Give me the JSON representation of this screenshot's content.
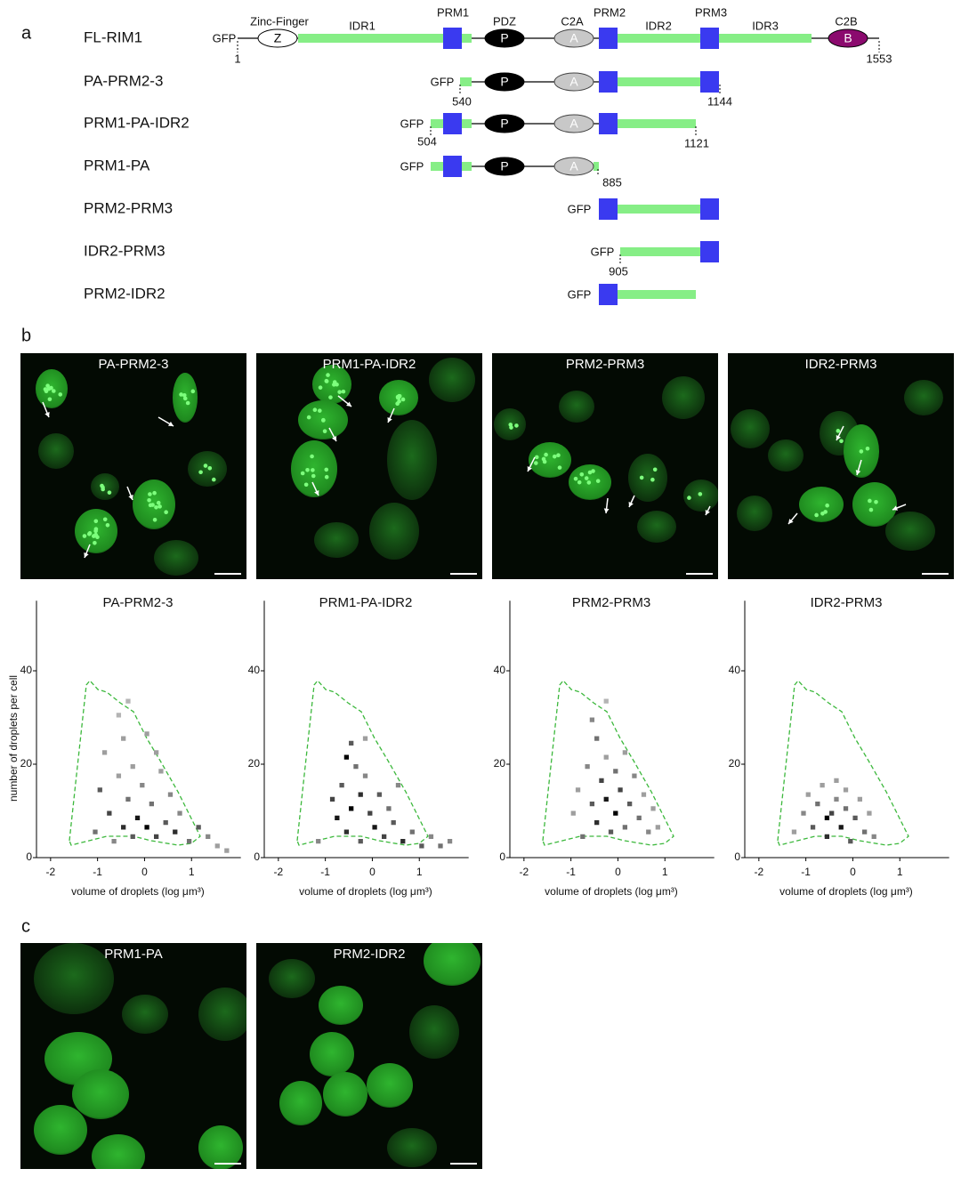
{
  "panels": {
    "a": "a",
    "b": "b",
    "c": "c"
  },
  "domains": {
    "gfp": "GFP",
    "zinc_finger": "Zinc-Finger",
    "z": "Z",
    "idr1": "IDR1",
    "prm1": "PRM1",
    "pdz": "PDZ",
    "p": "P",
    "c2a": "C2A",
    "a": "A",
    "prm2": "PRM2",
    "idr2": "IDR2",
    "prm3": "PRM3",
    "idr3": "IDR3",
    "c2b": "C2B",
    "b": "B"
  },
  "constructs": [
    {
      "name": "FL-RIM1",
      "start": 1,
      "end": 1553
    },
    {
      "name": "PA-PRM2-3",
      "start": 540,
      "end": 1144
    },
    {
      "name": "PRM1-PA-IDR2",
      "start": 504,
      "end": 1121
    },
    {
      "name": "PRM1-PA",
      "end": 885
    },
    {
      "name": "PRM2-PRM3"
    },
    {
      "name": "IDR2-PRM3",
      "start": 905
    },
    {
      "name": "PRM2-IDR2"
    }
  ],
  "images_b": [
    "PA-PRM2-3",
    "PRM1-PA-IDR2",
    "PRM2-PRM3",
    "IDR2-PRM3"
  ],
  "plot_axes": {
    "xlim": [
      -2.3,
      2.05
    ],
    "ylim": [
      0,
      55
    ],
    "xticks": [
      -2,
      -1,
      0,
      1
    ],
    "yticks": [
      0,
      20,
      40
    ],
    "y_label": "number of droplets per cell",
    "x_label": "volume of droplets (log μm³)"
  },
  "plots": [
    {
      "title": "PA-PRM2-3",
      "cells": [
        [
          -1.1,
          5,
          0.5
        ],
        [
          -1,
          14,
          0.6
        ],
        [
          -0.9,
          22,
          0.3
        ],
        [
          -0.8,
          9,
          0.7
        ],
        [
          -0.7,
          3,
          0.4
        ],
        [
          -0.6,
          17,
          0.3
        ],
        [
          -0.5,
          25,
          0.3
        ],
        [
          -0.5,
          6,
          0.8
        ],
        [
          -0.4,
          12,
          0.5
        ],
        [
          -0.3,
          19,
          0.3
        ],
        [
          -0.3,
          4,
          0.6
        ],
        [
          -0.2,
          8,
          0.9
        ],
        [
          -0.1,
          15,
          0.4
        ],
        [
          0,
          6,
          1
        ],
        [
          0,
          26,
          0.3
        ],
        [
          0.1,
          11,
          0.5
        ],
        [
          0.2,
          4,
          0.7
        ],
        [
          0.3,
          18,
          0.3
        ],
        [
          0.4,
          7,
          0.6
        ],
        [
          0.5,
          13,
          0.4
        ],
        [
          0.6,
          5,
          0.8
        ],
        [
          0.7,
          9,
          0.4
        ],
        [
          0.9,
          3,
          0.5
        ],
        [
          1.1,
          6,
          0.6
        ],
        [
          1.3,
          4,
          0.4
        ],
        [
          1.5,
          2,
          0.3
        ],
        [
          1.7,
          1,
          0.3
        ],
        [
          -0.6,
          30,
          0.2
        ],
        [
          -0.4,
          33,
          0.2
        ],
        [
          0.2,
          22,
          0.3
        ]
      ]
    },
    {
      "title": "PRM1-PA-IDR2",
      "cells": [
        [
          -1.2,
          3,
          0.4
        ],
        [
          -0.9,
          12,
          0.7
        ],
        [
          -0.8,
          8,
          0.9
        ],
        [
          -0.7,
          15,
          0.6
        ],
        [
          -0.6,
          5,
          0.8
        ],
        [
          -0.5,
          24,
          0.6
        ],
        [
          -0.5,
          10,
          1
        ],
        [
          -0.4,
          19,
          0.5
        ],
        [
          -0.3,
          13,
          0.8
        ],
        [
          -0.3,
          3,
          0.6
        ],
        [
          -0.2,
          17,
          0.4
        ],
        [
          -0.1,
          9,
          0.7
        ],
        [
          0,
          6,
          0.9
        ],
        [
          0.1,
          13,
          0.6
        ],
        [
          0.2,
          4,
          0.7
        ],
        [
          0.3,
          10,
          0.5
        ],
        [
          0.4,
          7,
          0.6
        ],
        [
          0.5,
          15,
          0.4
        ],
        [
          0.6,
          3,
          0.8
        ],
        [
          0.8,
          5,
          0.5
        ],
        [
          1,
          2,
          0.6
        ],
        [
          1.2,
          4,
          0.4
        ],
        [
          1.4,
          2,
          0.5
        ],
        [
          1.6,
          3,
          0.4
        ],
        [
          -0.6,
          21,
          1
        ],
        [
          -0.2,
          25,
          0.3
        ]
      ]
    },
    {
      "title": "PRM2-PRM3",
      "cells": [
        [
          -1,
          9,
          0.3
        ],
        [
          -0.9,
          14,
          0.3
        ],
        [
          -0.8,
          4,
          0.5
        ],
        [
          -0.7,
          19,
          0.4
        ],
        [
          -0.6,
          11,
          0.6
        ],
        [
          -0.5,
          25,
          0.5
        ],
        [
          -0.5,
          7,
          0.8
        ],
        [
          -0.4,
          16,
          0.7
        ],
        [
          -0.3,
          21,
          0.3
        ],
        [
          -0.3,
          12,
          0.9
        ],
        [
          -0.2,
          5,
          0.6
        ],
        [
          -0.1,
          18,
          0.5
        ],
        [
          -0.1,
          9,
          1
        ],
        [
          0,
          14,
          0.7
        ],
        [
          0.1,
          22,
          0.3
        ],
        [
          0.1,
          6,
          0.5
        ],
        [
          0.2,
          11,
          0.6
        ],
        [
          0.3,
          17,
          0.4
        ],
        [
          0.4,
          8,
          0.5
        ],
        [
          0.5,
          13,
          0.3
        ],
        [
          0.6,
          5,
          0.4
        ],
        [
          0.7,
          10,
          0.3
        ],
        [
          0.8,
          6,
          0.3
        ],
        [
          -0.3,
          33,
          0.2
        ],
        [
          -0.6,
          29,
          0.4
        ]
      ]
    },
    {
      "title": "IDR2-PRM3",
      "cells": [
        [
          -1.3,
          5,
          0.3
        ],
        [
          -1.1,
          9,
          0.4
        ],
        [
          -1,
          13,
          0.3
        ],
        [
          -0.9,
          6,
          0.6
        ],
        [
          -0.8,
          11,
          0.5
        ],
        [
          -0.7,
          15,
          0.3
        ],
        [
          -0.6,
          4,
          0.8
        ],
        [
          -0.5,
          9,
          0.7
        ],
        [
          -0.4,
          12,
          0.4
        ],
        [
          -0.3,
          6,
          0.9
        ],
        [
          -0.2,
          10,
          0.5
        ],
        [
          -0.1,
          3,
          0.6
        ],
        [
          0,
          8,
          0.6
        ],
        [
          0.1,
          12,
          0.3
        ],
        [
          0.2,
          5,
          0.5
        ],
        [
          0.3,
          9,
          0.3
        ],
        [
          0.4,
          4,
          0.4
        ],
        [
          -0.4,
          16,
          0.3
        ],
        [
          -0.2,
          14,
          0.3
        ],
        [
          -0.6,
          8,
          1
        ]
      ]
    }
  ],
  "images_c": [
    "PRM1-PA",
    "PRM2-IDR2"
  ]
}
